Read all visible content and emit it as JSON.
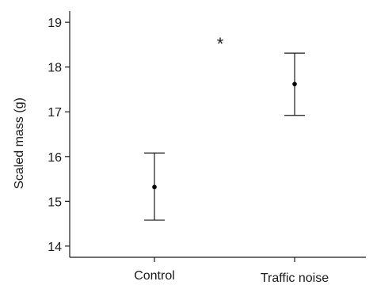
{
  "chart_data": {
    "type": "scatter",
    "title": "",
    "xlabel": "",
    "ylabel": "Scaled mass (g)",
    "categories": [
      "Control",
      "Traffic noise"
    ],
    "points": [
      {
        "category": "Control",
        "mean": 15.32,
        "lower": 14.58,
        "upper": 16.08
      },
      {
        "category": "Traffic noise",
        "mean": 17.62,
        "lower": 16.92,
        "upper": 18.31
      }
    ],
    "ylim": [
      13.75,
      19.25
    ],
    "yticks": [
      14,
      15,
      16,
      17,
      18,
      19
    ],
    "grid": false,
    "legend": "none",
    "annotation": "*",
    "colors": {
      "point": "#000000",
      "errorbar": "#1a1a1a",
      "axis": "#1a1a1a"
    }
  }
}
